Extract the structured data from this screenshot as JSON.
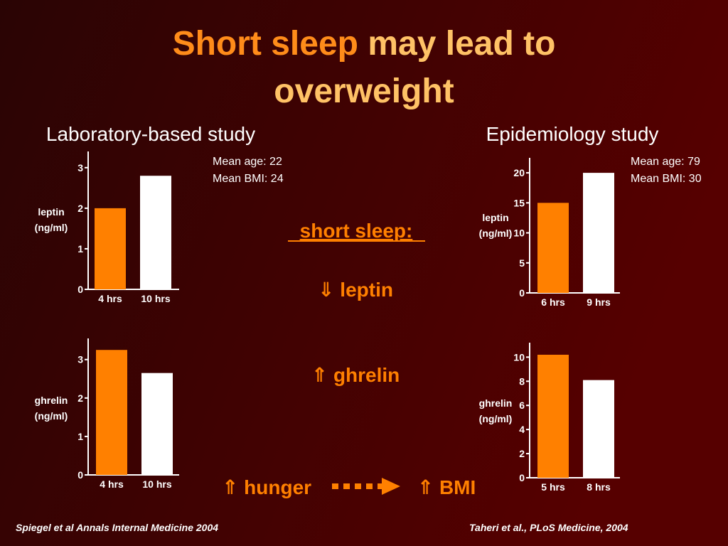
{
  "slide": {
    "title": {
      "highlight": "Short sleep",
      "rest": "may lead to",
      "line2": "overweight"
    },
    "left_heading": "Laboratory-based study",
    "right_heading": "Epidemiology study",
    "left_notes": [
      "Mean age: 22",
      "Mean BMI: 24"
    ],
    "right_notes": [
      "Mean age: 79",
      "Mean BMI: 30"
    ],
    "center_label": "short sleep:",
    "effect_leptin": "⇓ leptin",
    "effect_ghrelin": "⇑ ghrelin",
    "effect_hunger": "⇑ hunger",
    "effect_bmi": "⇑ BMI",
    "left_citation": "Spiegel et al Annals Internal Medicine 2004",
    "right_citation": "Taheri et al., PLoS Medicine, 2004"
  },
  "chart_data": [
    {
      "type": "bar",
      "categories": [
        "4 hrs",
        "10 hrs"
      ],
      "values": [
        2.0,
        2.8
      ],
      "colors": [
        "#ff8000",
        "#ffffff"
      ],
      "ylim": [
        0,
        3.4
      ],
      "yticks": [
        0,
        1,
        2,
        3
      ],
      "ylabel_lines": [
        "leptin",
        "(ng/ml)"
      ]
    },
    {
      "type": "bar",
      "categories": [
        "4 hrs",
        "10 hrs"
      ],
      "values": [
        3.25,
        2.65
      ],
      "colors": [
        "#ff8000",
        "#ffffff"
      ],
      "ylim": [
        0,
        3.55
      ],
      "yticks": [
        0,
        1,
        2,
        3
      ],
      "ylabel_lines": [
        "ghrelin",
        "(ng/ml)"
      ]
    },
    {
      "type": "bar",
      "categories": [
        "6 hrs",
        "9 hrs"
      ],
      "values": [
        15,
        20
      ],
      "colors": [
        "#ff8000",
        "#ffffff"
      ],
      "ylim": [
        0,
        22.5
      ],
      "yticks": [
        0,
        5,
        10,
        15,
        20
      ],
      "ylabel_lines": [
        "leptin",
        "(ng/ml)"
      ]
    },
    {
      "type": "bar",
      "categories": [
        "5 hrs",
        "8 hrs"
      ],
      "values": [
        10.2,
        8.1
      ],
      "colors": [
        "#ff8000",
        "#ffffff"
      ],
      "ylim": [
        0,
        11.2
      ],
      "yticks": [
        0,
        2,
        4,
        6,
        8,
        10
      ],
      "ylabel_lines": [
        "ghrelin",
        "(ng/ml)"
      ]
    }
  ]
}
